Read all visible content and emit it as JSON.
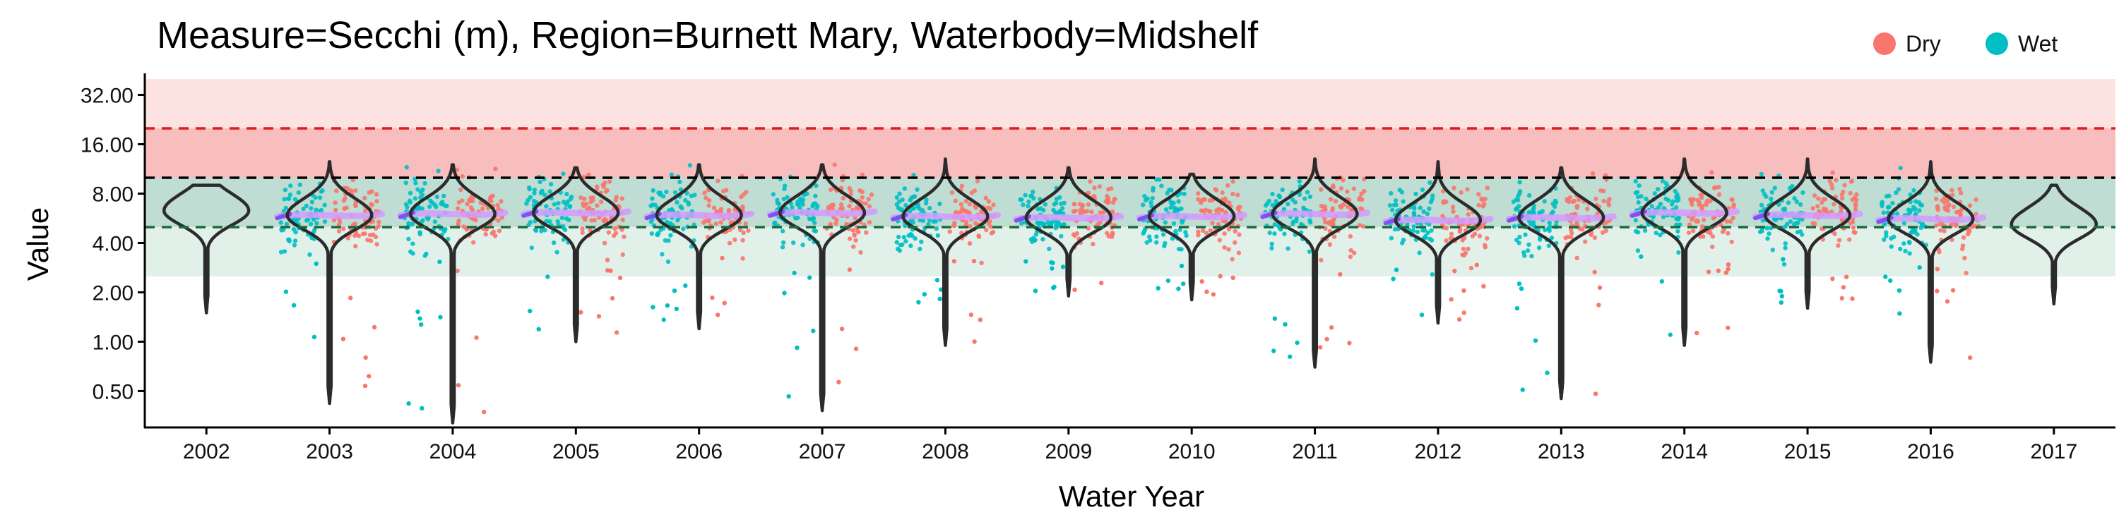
{
  "chart_data": {
    "type": "violin",
    "title": "Measure=Secchi (m), Region=Burnett Mary, Waterbody=Midshelf",
    "xlabel": "Water Year",
    "ylabel": "Value",
    "y_scale": "log2",
    "ylim": [
      0.3,
      40
    ],
    "y_ticks": [
      0.5,
      1,
      2,
      4,
      8,
      16,
      32
    ],
    "y_tick_labels": [
      "0.50",
      "1.00",
      "2.00",
      "4.00",
      "8.00",
      "16.00",
      "32.00"
    ],
    "categories": [
      "2002",
      "2003",
      "2004",
      "2005",
      "2006",
      "2007",
      "2008",
      "2009",
      "2010",
      "2011",
      "2012",
      "2013",
      "2014",
      "2015",
      "2016",
      "2017"
    ],
    "legend": {
      "position": "top-right",
      "entries": [
        {
          "name": "Dry",
          "color": "#F8766D"
        },
        {
          "name": "Wet",
          "color": "#00BFC4"
        }
      ]
    },
    "bands": [
      {
        "from": 10,
        "to": 40,
        "color": "#FDE2E2"
      },
      {
        "from": 10,
        "to": 20,
        "color": "#F8BDBD"
      },
      {
        "from": 5,
        "to": 10,
        "color": "#BFDDD2"
      },
      {
        "from": 2.5,
        "to": 5,
        "color": "#E2F0EA"
      }
    ],
    "reference_lines": [
      {
        "value": 20,
        "color": "#E31A1C",
        "style": "dashed"
      },
      {
        "value": 10,
        "color": "#000000",
        "style": "dashed"
      },
      {
        "value": 5,
        "color": "#1B6B3A",
        "style": "dashed"
      }
    ],
    "violins": [
      {
        "year": "2002",
        "min": 1.5,
        "max": 9.0,
        "median": 6.3,
        "has_points": false
      },
      {
        "year": "2003",
        "min": 0.42,
        "max": 12.5,
        "median": 5.9,
        "has_points": true
      },
      {
        "year": "2004",
        "min": 0.32,
        "max": 12.0,
        "median": 6.0,
        "has_points": true
      },
      {
        "year": "2005",
        "min": 1.0,
        "max": 11.5,
        "median": 6.1,
        "has_points": true
      },
      {
        "year": "2006",
        "min": 1.2,
        "max": 12.0,
        "median": 5.9,
        "has_points": true
      },
      {
        "year": "2007",
        "min": 0.38,
        "max": 12.0,
        "median": 6.1,
        "has_points": true
      },
      {
        "year": "2008",
        "min": 0.95,
        "max": 13.0,
        "median": 5.8,
        "has_points": true
      },
      {
        "year": "2009",
        "min": 1.9,
        "max": 11.5,
        "median": 5.7,
        "has_points": true
      },
      {
        "year": "2010",
        "min": 1.8,
        "max": 10.5,
        "median": 5.8,
        "has_points": true
      },
      {
        "year": "2011",
        "min": 0.7,
        "max": 13.0,
        "median": 6.0,
        "has_points": true
      },
      {
        "year": "2012",
        "min": 1.3,
        "max": 12.5,
        "median": 5.5,
        "has_points": true
      },
      {
        "year": "2013",
        "min": 0.45,
        "max": 11.5,
        "median": 5.7,
        "has_points": true
      },
      {
        "year": "2014",
        "min": 0.95,
        "max": 13.0,
        "median": 6.1,
        "has_points": true
      },
      {
        "year": "2015",
        "min": 1.6,
        "max": 13.0,
        "median": 5.9,
        "has_points": true
      },
      {
        "year": "2016",
        "min": 0.75,
        "max": 12.5,
        "median": 5.6,
        "has_points": true
      },
      {
        "year": "2017",
        "min": 1.7,
        "max": 9.0,
        "median": 5.2,
        "has_points": false
      }
    ],
    "colors": {
      "dry": "#F8766D",
      "wet": "#00BFC4",
      "violin_stroke": "#2B2B2B",
      "trend_light": "#D29BFF",
      "trend_dark": "#6A3DF0"
    }
  }
}
